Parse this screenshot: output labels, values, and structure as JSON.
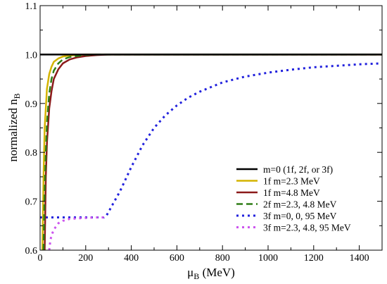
{
  "chart_data": {
    "type": "line",
    "xlabel": "μB (MeV)",
    "ylabel": "normalized nB",
    "xlim": [
      0,
      1500
    ],
    "ylim": [
      0.6,
      1.1
    ],
    "xticks": [
      0,
      200,
      400,
      600,
      800,
      1000,
      1200,
      1400
    ],
    "yticks": [
      0.6,
      0.7,
      0.8,
      0.9,
      1.0,
      1.1
    ],
    "xtick_labels": [
      "0",
      "200",
      "400",
      "600",
      "800",
      "1000",
      "1200",
      "1400"
    ],
    "ytick_labels": [
      "0.6",
      "0.7",
      "0.8",
      "0.9",
      "1.0",
      "1.1"
    ],
    "grid": false,
    "legend_position": "bottom-right",
    "series": [
      {
        "name": "m=0 (1f, 2f, or 3f)",
        "color": "#000000",
        "style": "solid",
        "x": [
          0,
          1500
        ],
        "y": [
          1.0,
          1.0
        ]
      },
      {
        "name": "1f m=2.3 MeV",
        "color": "#d4b400",
        "style": "solid",
        "x": [
          10,
          15,
          20,
          30,
          40,
          50,
          60,
          80,
          100,
          130,
          160,
          200,
          300,
          1500
        ],
        "y": [
          0.6,
          0.75,
          0.85,
          0.93,
          0.96,
          0.975,
          0.985,
          0.992,
          0.996,
          0.998,
          0.999,
          1.0,
          1.0,
          1.0
        ]
      },
      {
        "name": "1f m=4.8 MeV",
        "color": "#8b1a1a",
        "style": "solid",
        "x": [
          20,
          25,
          30,
          40,
          50,
          60,
          80,
          100,
          130,
          160,
          200,
          250,
          300,
          1500
        ],
        "y": [
          0.6,
          0.75,
          0.82,
          0.89,
          0.925,
          0.95,
          0.97,
          0.982,
          0.99,
          0.994,
          0.997,
          0.999,
          1.0,
          1.0
        ]
      },
      {
        "name": "2f m=2.3, 4.8 MeV",
        "color": "#2e7d16",
        "style": "dashed",
        "x": [
          15,
          20,
          25,
          30,
          40,
          50,
          60,
          80,
          100,
          130,
          160,
          200,
          250,
          1500
        ],
        "y": [
          0.6,
          0.72,
          0.8,
          0.86,
          0.92,
          0.95,
          0.967,
          0.982,
          0.99,
          0.995,
          0.997,
          0.999,
          1.0,
          1.0
        ]
      },
      {
        "name": "3f m=0, 0, 95 MeV",
        "color": "#2222dd",
        "style": "dotted",
        "x": [
          0,
          280,
          290,
          300,
          320,
          350,
          400,
          450,
          500,
          550,
          600,
          650,
          700,
          800,
          900,
          1000,
          1100,
          1200,
          1300,
          1400,
          1500
        ],
        "y": [
          0.667,
          0.667,
          0.67,
          0.678,
          0.695,
          0.72,
          0.77,
          0.815,
          0.85,
          0.876,
          0.896,
          0.912,
          0.924,
          0.943,
          0.955,
          0.963,
          0.969,
          0.974,
          0.977,
          0.98,
          0.982
        ]
      },
      {
        "name": "3f m=2.3, 4.8, 95 MeV",
        "color": "#cc55ee",
        "style": "dotted",
        "x": [
          40,
          45,
          50,
          60,
          80,
          100,
          130,
          160,
          200,
          250,
          280
        ],
        "y": [
          0.6,
          0.62,
          0.63,
          0.642,
          0.655,
          0.66,
          0.664,
          0.665,
          0.666,
          0.667,
          0.667
        ]
      }
    ]
  }
}
